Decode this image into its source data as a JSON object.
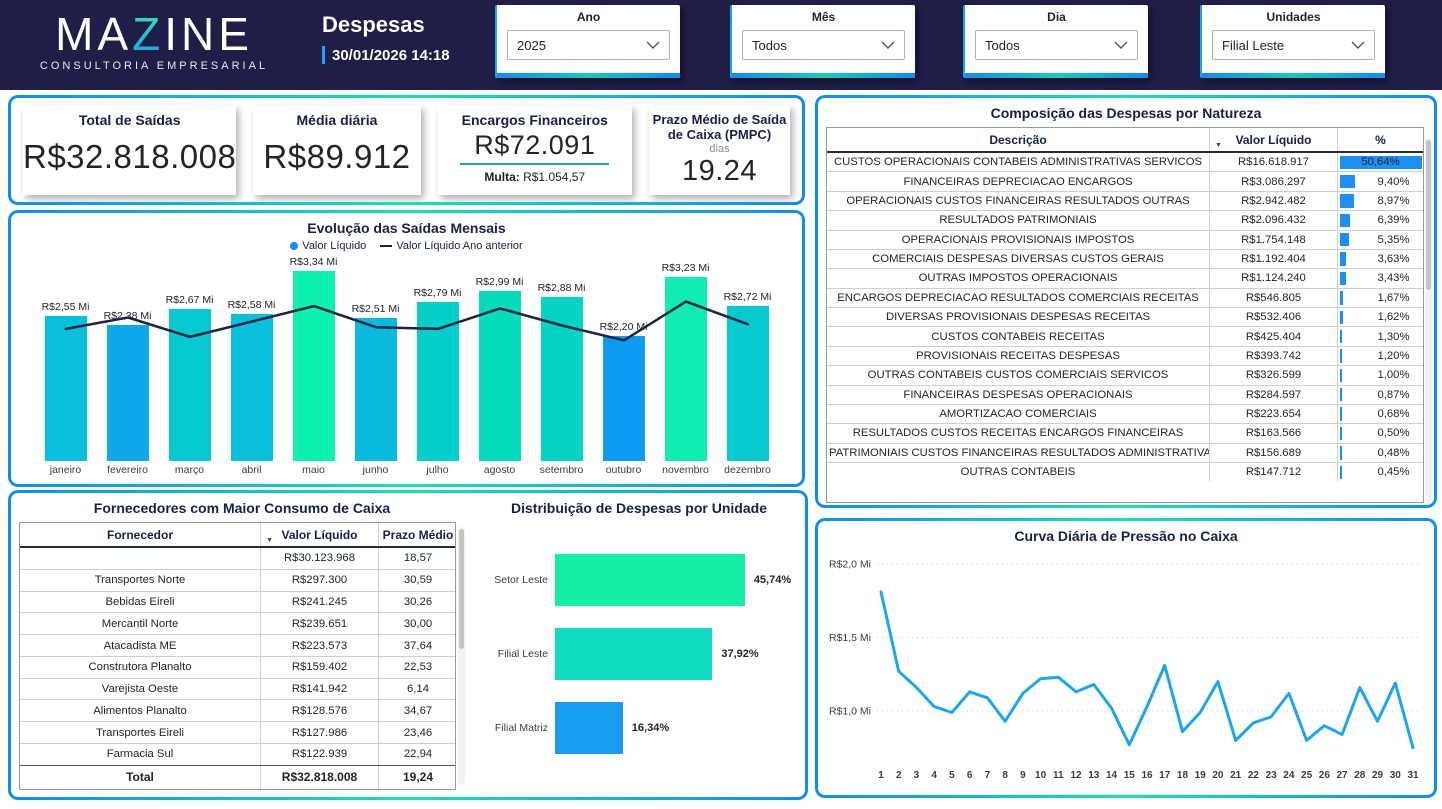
{
  "header": {
    "logo": {
      "part1": "MA",
      "part2": "Z",
      "part3": "INE",
      "subtitle": "CONSULTORIA EMPRESARIAL"
    },
    "title": "Despesas",
    "datetime": "30/01/2026 14:18",
    "slicers": [
      {
        "label": "Ano",
        "value": "2025"
      },
      {
        "label": "Mês",
        "value": "Todos"
      },
      {
        "label": "Dia",
        "value": "Todos"
      },
      {
        "label": "Unidades",
        "value": "Filial Leste"
      }
    ]
  },
  "kpis": {
    "total_saidas": {
      "title": "Total de Saídas",
      "value": "R$32.818.008"
    },
    "media_diaria": {
      "title": "Média diária",
      "value": "R$89.912"
    },
    "encargos": {
      "title": "Encargos Financeiros",
      "value": "R$72.091",
      "multa_label": "Multa:",
      "multa_value": "R$1.054,57"
    },
    "pmpc": {
      "title": "Prazo Médio de Saída de Caixa (PMPC)",
      "unit": "dias",
      "value": "19.24"
    }
  },
  "composicao": {
    "title": "Composição das Despesas por Natureza",
    "columns": [
      "Descrição",
      "Valor Líquido",
      "%"
    ],
    "rows": [
      {
        "desc": "CUSTOS OPERACIONAIS CONTABEIS ADMINISTRATIVAS SERVICOS",
        "valor": "R$16.618.917",
        "pct": "50,64%",
        "pct_num": 50.64
      },
      {
        "desc": "FINANCEIRAS DEPRECIACAO ENCARGOS",
        "valor": "R$3.086.297",
        "pct": "9,40%",
        "pct_num": 9.4
      },
      {
        "desc": "OPERACIONAIS CUSTOS FINANCEIRAS RESULTADOS OUTRAS",
        "valor": "R$2.942.482",
        "pct": "8,97%",
        "pct_num": 8.97
      },
      {
        "desc": "RESULTADOS PATRIMONIAIS",
        "valor": "R$2.096.432",
        "pct": "6,39%",
        "pct_num": 6.39
      },
      {
        "desc": "OPERACIONAIS PROVISIONAIS IMPOSTOS",
        "valor": "R$1.754.148",
        "pct": "5,35%",
        "pct_num": 5.35
      },
      {
        "desc": "COMERCIAIS DESPESAS DIVERSAS CUSTOS GERAIS",
        "valor": "R$1.192.404",
        "pct": "3,63%",
        "pct_num": 3.63
      },
      {
        "desc": "OUTRAS IMPOSTOS OPERACIONAIS",
        "valor": "R$1.124.240",
        "pct": "3,43%",
        "pct_num": 3.43
      },
      {
        "desc": "ENCARGOS DEPRECIACAO RESULTADOS COMERCIAIS RECEITAS",
        "valor": "R$546.805",
        "pct": "1,67%",
        "pct_num": 1.67
      },
      {
        "desc": "DIVERSAS PROVISIONAIS DESPESAS RECEITAS",
        "valor": "R$532.406",
        "pct": "1,62%",
        "pct_num": 1.62
      },
      {
        "desc": "CUSTOS CONTABEIS RECEITAS",
        "valor": "R$425.404",
        "pct": "1,30%",
        "pct_num": 1.3
      },
      {
        "desc": "PROVISIONAIS RECEITAS DESPESAS",
        "valor": "R$393.742",
        "pct": "1,20%",
        "pct_num": 1.2
      },
      {
        "desc": "OUTRAS CONTABEIS CUSTOS COMERCIAIS SERVICOS",
        "valor": "R$326.599",
        "pct": "1,00%",
        "pct_num": 1.0
      },
      {
        "desc": "FINANCEIRAS DESPESAS OPERACIONAIS",
        "valor": "R$284.597",
        "pct": "0,87%",
        "pct_num": 0.87
      },
      {
        "desc": "AMORTIZACAO COMERCIAIS",
        "valor": "R$223.654",
        "pct": "0,68%",
        "pct_num": 0.68
      },
      {
        "desc": "RESULTADOS CUSTOS RECEITAS ENCARGOS FINANCEIRAS",
        "valor": "R$163.566",
        "pct": "0,50%",
        "pct_num": 0.5
      },
      {
        "desc": "PATRIMONIAIS CUSTOS FINANCEIRAS RESULTADOS ADMINISTRATIVAS",
        "valor": "R$156.689",
        "pct": "0,48%",
        "pct_num": 0.48
      },
      {
        "desc": "OUTRAS CONTABEIS",
        "valor": "R$147.712",
        "pct": "0,45%",
        "pct_num": 0.45
      }
    ]
  },
  "fornecedores": {
    "title": "Fornecedores com Maior Consumo de Caixa",
    "columns": [
      "Fornecedor",
      "Valor Líquido",
      "Prazo Médio"
    ],
    "rows": [
      {
        "nome": "",
        "valor": "R$30.123.968",
        "prazo": "18,57"
      },
      {
        "nome": "Transportes Norte",
        "valor": "R$297.300",
        "prazo": "30,59"
      },
      {
        "nome": "Bebidas Eireli",
        "valor": "R$241.245",
        "prazo": "30,26"
      },
      {
        "nome": "Mercantil Norte",
        "valor": "R$239.651",
        "prazo": "30,00"
      },
      {
        "nome": "Atacadista ME",
        "valor": "R$223.573",
        "prazo": "37,64"
      },
      {
        "nome": "Construtora Planalto",
        "valor": "R$159.402",
        "prazo": "22,53"
      },
      {
        "nome": "Varejista Oeste",
        "valor": "R$141.942",
        "prazo": "6,14"
      },
      {
        "nome": "Alimentos Planalto",
        "valor": "R$128.576",
        "prazo": "34,67"
      },
      {
        "nome": "Transportes Eireli",
        "valor": "R$127.986",
        "prazo": "23,46"
      },
      {
        "nome": "Farmacia Sul",
        "valor": "R$122.939",
        "prazo": "22,94"
      }
    ],
    "total": {
      "label": "Total",
      "valor": "R$32.818.008",
      "prazo": "19,24"
    }
  },
  "chart_data": [
    {
      "id": "monthly",
      "type": "bar+line",
      "title": "Evolução das Saídas Mensais",
      "categories": [
        "janeiro",
        "fevereiro",
        "março",
        "abril",
        "maio",
        "junho",
        "julho",
        "agosto",
        "setembro",
        "outubro",
        "novembro",
        "dezembro"
      ],
      "series": [
        {
          "name": "Valor Líquido",
          "values": [
            2.55,
            2.38,
            2.67,
            2.58,
            3.34,
            2.51,
            2.79,
            2.99,
            2.88,
            2.2,
            3.23,
            2.72
          ],
          "labels": [
            "R$2,55 Mi",
            "R$2,38 Mi",
            "R$2,67 Mi",
            "R$2,58 Mi",
            "R$3,34 Mi",
            "R$2,51 Mi",
            "R$2,79 Mi",
            "R$2,99 Mi",
            "R$2,88 Mi",
            "R$2,20 Mi",
            "R$3,23 Mi",
            "R$2,72 Mi"
          ],
          "colors": [
            "#08bfdd",
            "#0ba9e9",
            "#06c9d1",
            "#07c1da",
            "#0cf2ae",
            "#09bade",
            "#05cfc8",
            "#04dcbd",
            "#05d4c3",
            "#0d9bf2",
            "#10ecb2",
            "#06cbce"
          ]
        },
        {
          "name": "Valor Líquido Ano anterior",
          "values": [
            2.32,
            2.52,
            2.18,
            2.45,
            2.72,
            2.35,
            2.32,
            2.68,
            2.38,
            2.12,
            2.8,
            2.4
          ],
          "color": "#1c2444"
        }
      ],
      "ylim": [
        0,
        3.6
      ],
      "unit": "Mi",
      "legend_position": "top"
    },
    {
      "id": "units",
      "type": "bar",
      "title": "Distribuição de Despesas por Unidade",
      "categories": [
        "Setor Leste",
        "Filial Leste",
        "Filial Matriz"
      ],
      "values": [
        45.74,
        37.92,
        16.34
      ],
      "labels": [
        "45,74%",
        "37,92%",
        "16,34%"
      ],
      "colors": [
        "#13eda6",
        "#0edcc0",
        "#189df2"
      ],
      "orientation": "horizontal",
      "xlim": [
        0,
        50
      ]
    },
    {
      "id": "daily",
      "type": "line",
      "title": "Curva Diária de Pressão no Caixa",
      "x": [
        1,
        2,
        3,
        4,
        5,
        6,
        7,
        8,
        9,
        10,
        11,
        12,
        13,
        14,
        15,
        16,
        17,
        18,
        19,
        20,
        21,
        22,
        23,
        24,
        25,
        26,
        27,
        28,
        29,
        30,
        31
      ],
      "values": [
        1.81,
        1.27,
        1.16,
        1.03,
        0.99,
        1.13,
        1.09,
        0.93,
        1.12,
        1.22,
        1.23,
        1.13,
        1.18,
        1.02,
        0.77,
        1.03,
        1.31,
        0.86,
        0.99,
        1.2,
        0.8,
        0.92,
        0.96,
        1.12,
        0.8,
        0.9,
        0.84,
        1.16,
        0.93,
        1.19,
        0.75
      ],
      "yticks": [
        {
          "v": 2.0,
          "label": "R$2,0 Mi"
        },
        {
          "v": 1.5,
          "label": "R$1,5 Mi"
        },
        {
          "v": 1.0,
          "label": "R$1,0 Mi"
        }
      ],
      "ylim": [
        0.6,
        2.1
      ],
      "color": "#1ba6f2",
      "grid": "dotted"
    }
  ],
  "colors": {
    "header_bg": "#201d47",
    "accent_blue": "#118DFF",
    "accent_mint": "#16e3ae",
    "pct_bar_blue": "#1d90f5",
    "panel_border": "gradient #0d8df2 → #16e3ae",
    "title_navy": "#16204a"
  }
}
